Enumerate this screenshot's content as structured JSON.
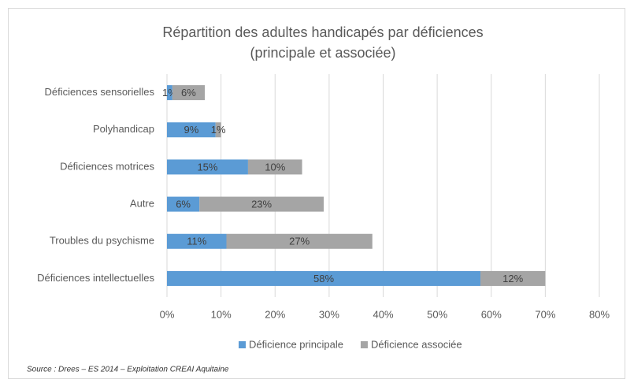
{
  "chart_data": {
    "type": "stacked-barh",
    "title": "Répartition des adultes handicapés par déficiences",
    "subtitle": "(principale et associée)",
    "categories": [
      "Déficiences sensorielles",
      "Polyhandicap",
      "Déficiences motrices",
      "Autre",
      "Troubles du psychisme",
      "Déficiences intellectuelles"
    ],
    "series": [
      {
        "name": "Déficience principale",
        "color": "#5b9bd5",
        "values": [
          1,
          9,
          15,
          6,
          11,
          58
        ],
        "value_labels": [
          "1%",
          "9%",
          "15%",
          "6%",
          "11%",
          "58%"
        ]
      },
      {
        "name": "Déficience associée",
        "color": "#a5a5a5",
        "values": [
          6,
          1,
          10,
          23,
          27,
          12
        ],
        "value_labels": [
          "6%",
          "1%",
          "10%",
          "23%",
          "27%",
          "12%"
        ]
      }
    ],
    "xlim": [
      0,
      80
    ],
    "xticks": [
      {
        "value": 0,
        "label": "0%"
      },
      {
        "value": 10,
        "label": "10%"
      },
      {
        "value": 20,
        "label": "20%"
      },
      {
        "value": 30,
        "label": "30%"
      },
      {
        "value": 40,
        "label": "40%"
      },
      {
        "value": 50,
        "label": "50%"
      },
      {
        "value": 60,
        "label": "60%"
      },
      {
        "value": 70,
        "label": "70%"
      },
      {
        "value": 80,
        "label": "80%"
      }
    ],
    "grid": true,
    "legend": "bottom",
    "source": "Source : Drees – ES 2014 – Exploitation CREAI Aquitaine"
  }
}
